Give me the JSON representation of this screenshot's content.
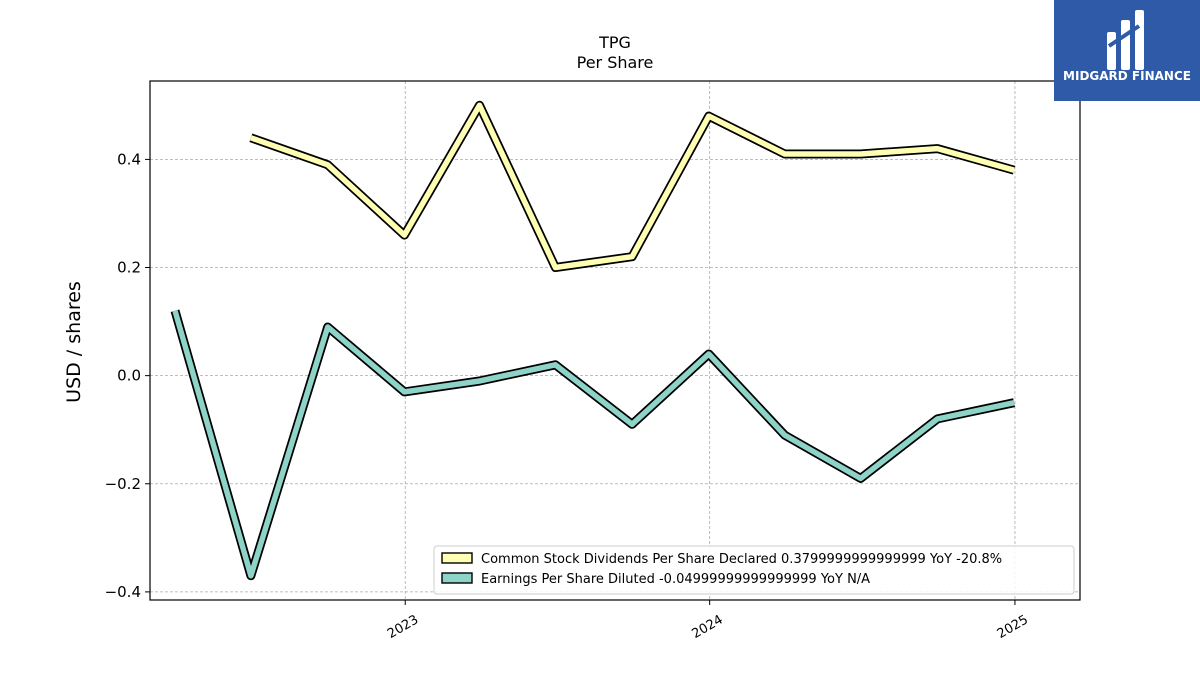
{
  "brand": {
    "name": "MIDGARD FINANCE",
    "color": "#2e5aa8"
  },
  "chart_data": {
    "type": "line",
    "title": "TPG",
    "subtitle": "Per  Share",
    "ylabel": "USD / shares",
    "xlabel": "",
    "x_range": [
      "2022-03-01",
      "2025-03-20"
    ],
    "ylim": [
      -0.415,
      0.545
    ],
    "yticks": [
      {
        "value": 0.4,
        "label": "0.4"
      },
      {
        "value": 0.2,
        "label": "0.2"
      },
      {
        "value": 0.0,
        "label": "0.0"
      },
      {
        "value": -0.2,
        "label": "−0.2"
      },
      {
        "value": -0.4,
        "label": "−0.4"
      }
    ],
    "xticks": [
      {
        "date": "2023-01-01",
        "label": "2023"
      },
      {
        "date": "2024-01-01",
        "label": "2024"
      },
      {
        "date": "2025-01-01",
        "label": "2025"
      }
    ],
    "grid": true,
    "legend_position": "lower-right",
    "series": [
      {
        "name": "Common Stock Dividends Per Share Declared",
        "legend_label": "Common Stock Dividends Per Share Declared  0.3799999999999999 YoY -20.8%",
        "color": "#ffffb3",
        "points": [
          {
            "date": "2022-06-30",
            "value": 0.44
          },
          {
            "date": "2022-09-30",
            "value": 0.39
          },
          {
            "date": "2022-12-31",
            "value": 0.26
          },
          {
            "date": "2023-03-31",
            "value": 0.5
          },
          {
            "date": "2023-06-30",
            "value": 0.2
          },
          {
            "date": "2023-09-30",
            "value": 0.22
          },
          {
            "date": "2023-12-31",
            "value": 0.48
          },
          {
            "date": "2024-03-31",
            "value": 0.41
          },
          {
            "date": "2024-06-30",
            "value": 0.41
          },
          {
            "date": "2024-09-30",
            "value": 0.42
          },
          {
            "date": "2024-12-31",
            "value": 0.38
          }
        ]
      },
      {
        "name": "Earnings Per Share Diluted",
        "legend_label": "Earnings Per Share Diluted  -0.04999999999999999 YoY N/A",
        "color": "#8dd3c7",
        "points": [
          {
            "date": "2022-03-31",
            "value": 0.12
          },
          {
            "date": "2022-06-30",
            "value": -0.37
          },
          {
            "date": "2022-09-30",
            "value": 0.09
          },
          {
            "date": "2022-12-31",
            "value": -0.03
          },
          {
            "date": "2023-03-31",
            "value": -0.01
          },
          {
            "date": "2023-06-30",
            "value": 0.02
          },
          {
            "date": "2023-09-30",
            "value": -0.09
          },
          {
            "date": "2023-12-31",
            "value": 0.04
          },
          {
            "date": "2024-03-31",
            "value": -0.11
          },
          {
            "date": "2024-06-30",
            "value": -0.19
          },
          {
            "date": "2024-09-30",
            "value": -0.08
          },
          {
            "date": "2024-12-31",
            "value": -0.05
          }
        ]
      }
    ]
  }
}
